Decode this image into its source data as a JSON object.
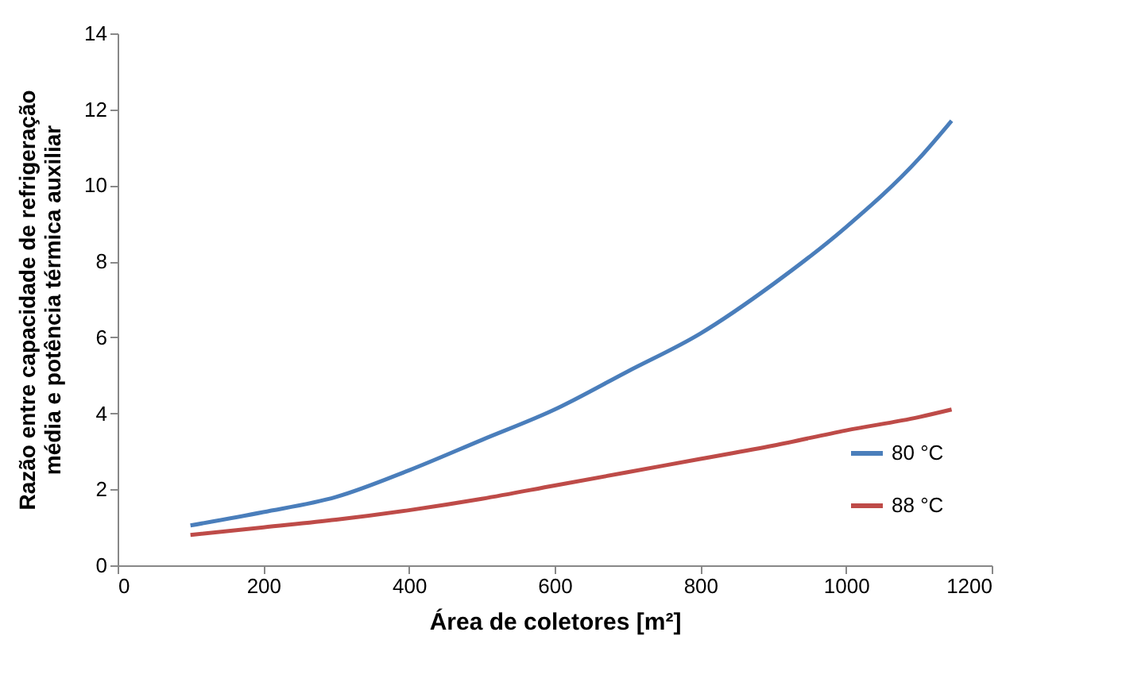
{
  "chart_data": {
    "type": "line",
    "xlabel": "Área de coletores [m²]",
    "ylabel": "Razão entre capacidade de refrigeração média e potência térmica auxiliar",
    "xlim": [
      0,
      1200
    ],
    "xticks": [
      0,
      200,
      400,
      600,
      800,
      1000,
      1200
    ],
    "ylim": [
      0,
      14
    ],
    "yticks": [
      0,
      2,
      4,
      6,
      8,
      10,
      12,
      14
    ],
    "grid": false,
    "legend": "bottom right",
    "marker": "none",
    "line_style": "solid",
    "x": [
      100,
      200,
      300,
      400,
      500,
      600,
      700,
      800,
      900,
      1000,
      1100,
      1145
    ],
    "series": [
      {
        "name": "80 °C",
        "color": "#4a7ebb",
        "values": [
          1.05,
          1.4,
          1.8,
          2.5,
          3.3,
          4.1,
          5.1,
          6.1,
          7.4,
          8.9,
          10.7,
          11.7
        ]
      },
      {
        "name": "88 °C",
        "color": "#be4b48",
        "values": [
          0.8,
          1.0,
          1.2,
          1.45,
          1.75,
          2.1,
          2.45,
          2.8,
          3.15,
          3.55,
          3.9,
          4.1
        ]
      }
    ]
  }
}
